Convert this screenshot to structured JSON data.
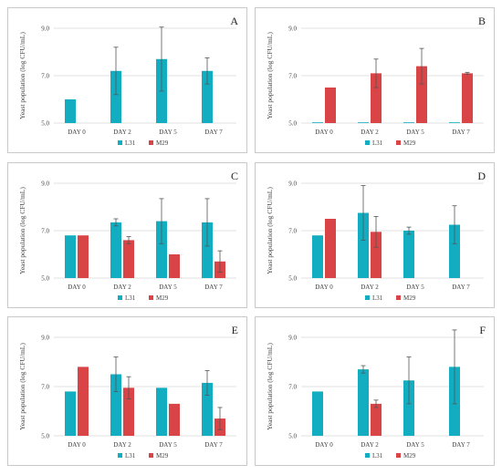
{
  "colors": {
    "L31": "#12adc1",
    "M29": "#d94446",
    "axis": "#d9d9d9",
    "error": "#555555"
  },
  "chart_data": [
    {
      "panel": "A",
      "type": "bar",
      "ylabel": "Yeast population (log CFU/mL)",
      "categories": [
        "DAY 0",
        "DAY 2",
        "DAY 5",
        "DAY 7"
      ],
      "yticks": [
        "5.0",
        "7.0",
        "9.0"
      ],
      "ylim": [
        5.0,
        9.0
      ],
      "legend": [
        "L31",
        "M29"
      ],
      "series": [
        {
          "name": "L31",
          "values": [
            6.0,
            7.2,
            7.7,
            7.2
          ],
          "errors": [
            0,
            1.0,
            1.35,
            0.55
          ]
        },
        {
          "name": "M29",
          "values": [
            null,
            null,
            null,
            null
          ],
          "errors": [
            0,
            0,
            0,
            0
          ]
        }
      ]
    },
    {
      "panel": "B",
      "type": "bar",
      "ylabel": "Yeast population (log CFU/mL)",
      "categories": [
        "DAY 0",
        "DAY 2",
        "DAY 5",
        "DAY 7"
      ],
      "yticks": [
        "5.0",
        "7.0",
        "9.0"
      ],
      "ylim": [
        5.0,
        9.0
      ],
      "legend": [
        "L31",
        "M29"
      ],
      "series": [
        {
          "name": "L31",
          "values": [
            5.0,
            5.0,
            5.0,
            5.0
          ],
          "errors": [
            0,
            0,
            0,
            0
          ]
        },
        {
          "name": "M29",
          "values": [
            6.5,
            7.1,
            7.4,
            7.1
          ],
          "errors": [
            0,
            0.6,
            0.75,
            0.04
          ]
        }
      ]
    },
    {
      "panel": "C",
      "type": "bar",
      "ylabel": "Yeast population (log CFU/mL)",
      "categories": [
        "DAY 0",
        "DAY 2",
        "DAY 5",
        "DAY 7"
      ],
      "yticks": [
        "5.0",
        "7.0",
        "9.0"
      ],
      "ylim": [
        5.0,
        9.0
      ],
      "legend": [
        "L31",
        "M29"
      ],
      "series": [
        {
          "name": "L31",
          "values": [
            6.8,
            7.35,
            7.4,
            7.35
          ],
          "errors": [
            0,
            0.15,
            0.95,
            1.0
          ]
        },
        {
          "name": "M29",
          "values": [
            6.8,
            6.6,
            6.0,
            5.7
          ],
          "errors": [
            0,
            0.15,
            0,
            0.45
          ]
        }
      ]
    },
    {
      "panel": "D",
      "type": "bar",
      "ylabel": "Yeast population (log CFU/mL)",
      "categories": [
        "DAY 0",
        "DAY 2",
        "DAY 5",
        "DAY 7"
      ],
      "yticks": [
        "5.0",
        "7.0",
        "9.0"
      ],
      "ylim": [
        5.0,
        9.0
      ],
      "legend": [
        "L31",
        "M29"
      ],
      "series": [
        {
          "name": "L31",
          "values": [
            6.8,
            7.75,
            7.0,
            7.25
          ],
          "errors": [
            0,
            1.15,
            0.15,
            0.8
          ]
        },
        {
          "name": "M29",
          "values": [
            7.5,
            6.95,
            null,
            null
          ],
          "errors": [
            0,
            0.65,
            0,
            0
          ]
        }
      ]
    },
    {
      "panel": "E",
      "type": "bar",
      "ylabel": "Yeast population (log CFU/mL)",
      "categories": [
        "DAY 0",
        "DAY 2",
        "DAY 5",
        "DAY 7"
      ],
      "yticks": [
        "5.0",
        "7.0",
        "9.0"
      ],
      "ylim": [
        5.0,
        9.0
      ],
      "legend": [
        "L31",
        "M29"
      ],
      "series": [
        {
          "name": "L31",
          "values": [
            6.8,
            7.5,
            6.95,
            7.15
          ],
          "errors": [
            0,
            0.7,
            0,
            0.5
          ]
        },
        {
          "name": "M29",
          "values": [
            7.8,
            6.95,
            6.3,
            5.7
          ],
          "errors": [
            0,
            0.45,
            0,
            0.45
          ]
        }
      ]
    },
    {
      "panel": "F",
      "type": "bar",
      "ylabel": "Yeast population (log CFU/mL)",
      "categories": [
        "DAY 0",
        "DAY 2",
        "DAY 5",
        "DAY 7"
      ],
      "yticks": [
        "5.0",
        "7.0",
        "9.0"
      ],
      "ylim": [
        5.0,
        9.0
      ],
      "legend": [
        "L31",
        "M29"
      ],
      "series": [
        {
          "name": "L31",
          "values": [
            6.8,
            7.7,
            7.25,
            7.8
          ],
          "errors": [
            0,
            0.15,
            0.95,
            1.5
          ]
        },
        {
          "name": "M29",
          "values": [
            null,
            6.3,
            null,
            null
          ],
          "errors": [
            0,
            0.15,
            0,
            0
          ]
        }
      ]
    }
  ]
}
